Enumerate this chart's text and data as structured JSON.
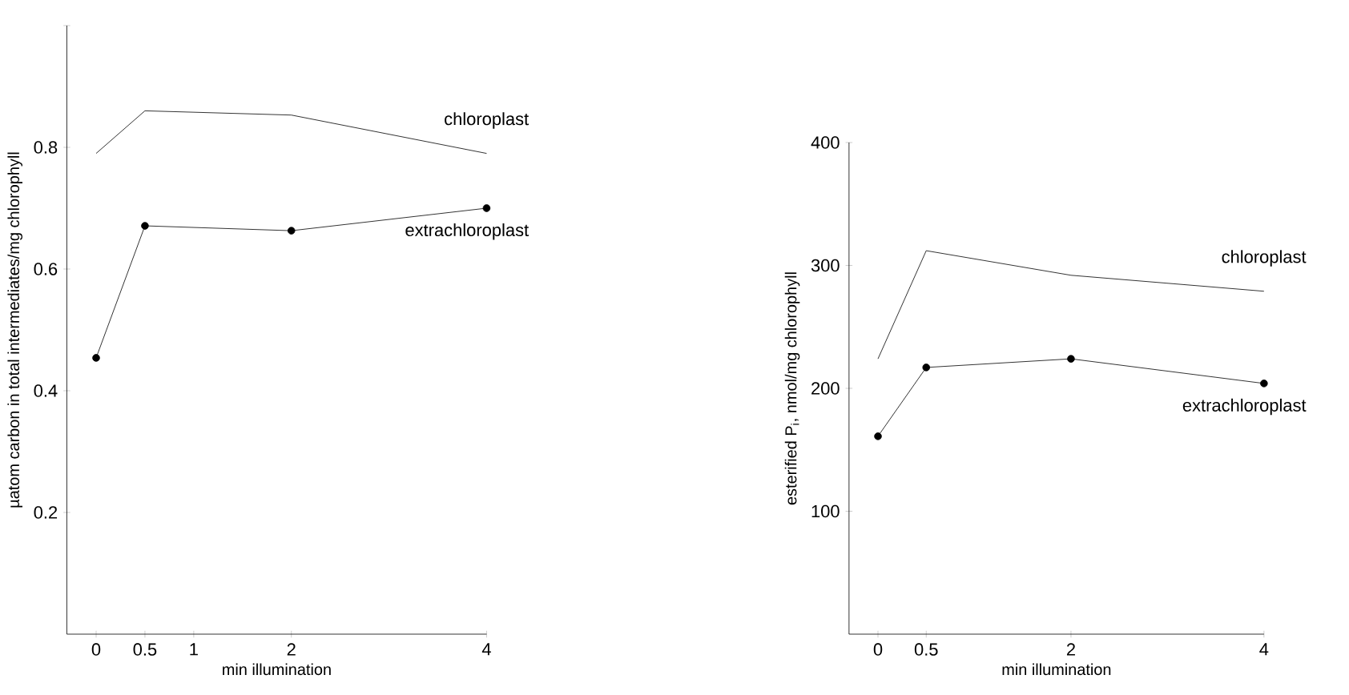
{
  "chart_data": [
    {
      "type": "line",
      "xlabel": "min illumination",
      "ylabel": "µatom carbon in total intermediates/mg chlorophyll",
      "x": [
        0,
        0.5,
        2,
        4
      ],
      "xlim": [
        -0.3,
        4
      ],
      "xticks": [
        0,
        0.5,
        1,
        2,
        4
      ],
      "ylim": [
        0,
        1
      ],
      "yticks": [
        0.2,
        0.4,
        0.6,
        0.8,
        {
          "value": 1,
          "label": null
        }
      ],
      "grid": false,
      "series": [
        {
          "name": "chloroplast",
          "color": "#000000",
          "marker": "none",
          "values": [
            0.79,
            0.86,
            0.853,
            0.79
          ]
        },
        {
          "name": "extrachloroplast",
          "color": "#000000",
          "marker": "circle",
          "values": [
            0.454,
            0.671,
            0.663,
            0.7
          ]
        }
      ]
    },
    {
      "type": "line",
      "xlabel": "min illumination",
      "ylabel": "esterified P$_{i}$, nmol/mg chlorophyll",
      "x": [
        0,
        0.5,
        2,
        4
      ],
      "xlim": [
        -0.3,
        4
      ],
      "xticks": [
        0,
        0.5,
        2,
        4
      ],
      "ylim": [
        0,
        400
      ],
      "yticks": [
        100,
        200,
        300,
        400
      ],
      "grid": false,
      "series": [
        {
          "name": "chloroplast",
          "color": "#000000",
          "marker": "none",
          "values": [
            224,
            312,
            292,
            279
          ]
        },
        {
          "name": "extrachloroplast",
          "color": "#000000",
          "marker": "circle",
          "values": [
            161,
            217,
            224,
            204
          ]
        }
      ]
    }
  ]
}
